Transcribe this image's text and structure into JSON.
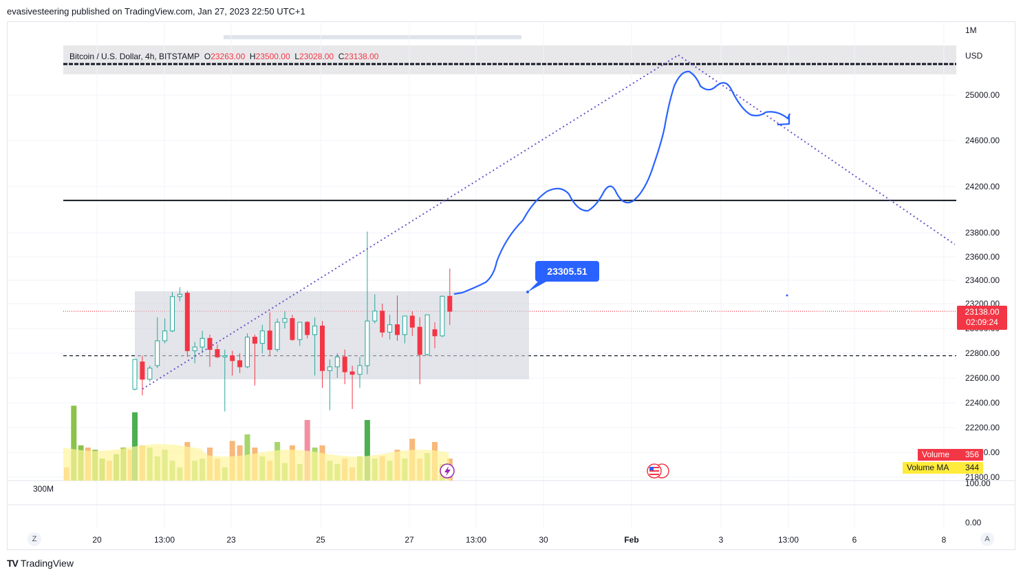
{
  "header": {
    "published": "evasivesteering published on TradingView.com, Jan 27, 2023 22:50 UTC+1"
  },
  "footer": {
    "brand": "TradingView",
    "logo_icon": "tradingview-logo-icon"
  },
  "legend": {
    "symbol": "Bitcoin / U.S. Dollar, 4h, BITSTAMP",
    "o_label": "O",
    "o_value": "23263.00",
    "h_label": "H",
    "h_value": "23500.00",
    "l_label": "L",
    "l_value": "23028.00",
    "c_label": "C",
    "c_value": "23138.00"
  },
  "price_tag": {
    "price": "23138.00",
    "countdown": "02:09:24"
  },
  "volume_tags": {
    "vol_label": "Volume",
    "vol_value": "356",
    "ma_label": "Volume MA",
    "ma_value": "344"
  },
  "callout": {
    "value": "23305.51"
  },
  "bottom_buttons": {
    "left": "Z",
    "right": "A"
  },
  "colors": {
    "up": "#26a69a",
    "down": "#f23645",
    "drawing": "#2962ff",
    "dotted": "#6a4fc9",
    "vol_up": "#4caf50",
    "vol_down": "#f7a9a9",
    "vol_ma": "#fff59d"
  },
  "chart_data": {
    "type": "candlestick",
    "currency": "USD",
    "y_ticks": [
      "25000.00",
      "24600.00",
      "24200.00",
      "23800.00",
      "23600.00",
      "23400.00",
      "23200.00",
      "23000.00",
      "22800.00",
      "22600.00",
      "22400.00",
      "22200.00",
      "22000.00",
      "21800.00"
    ],
    "ylim": [
      21750,
      25450
    ],
    "x_ticks": [
      "20",
      "13:00",
      "23",
      "25",
      "27",
      "13:00",
      "30",
      "Feb",
      "3",
      "13:00",
      "6",
      "8"
    ],
    "volume_axis": {
      "top_label": "1M",
      "mid_label": "300M",
      "scale_labels": [
        "100.00",
        "0.00"
      ]
    },
    "candles": [
      {
        "o": 22510,
        "h": 22740,
        "l": 22500,
        "c": 22750
      },
      {
        "o": 22730,
        "h": 22780,
        "l": 22460,
        "c": 22590
      },
      {
        "o": 22590,
        "h": 22700,
        "l": 22570,
        "c": 22680
      },
      {
        "o": 22700,
        "h": 23090,
        "l": 22680,
        "c": 22900
      },
      {
        "o": 22900,
        "h": 23080,
        "l": 22880,
        "c": 22980
      },
      {
        "o": 22980,
        "h": 23300,
        "l": 22970,
        "c": 23260
      },
      {
        "o": 23260,
        "h": 23340,
        "l": 23220,
        "c": 23280
      },
      {
        "o": 23290,
        "h": 23310,
        "l": 22770,
        "c": 22820
      },
      {
        "o": 22820,
        "h": 22890,
        "l": 22720,
        "c": 22850
      },
      {
        "o": 22850,
        "h": 22980,
        "l": 22800,
        "c": 22920
      },
      {
        "o": 22920,
        "h": 22950,
        "l": 22690,
        "c": 22830
      },
      {
        "o": 22830,
        "h": 22870,
        "l": 22760,
        "c": 22770
      },
      {
        "o": 22770,
        "h": 22830,
        "l": 22330,
        "c": 22780
      },
      {
        "o": 22780,
        "h": 22820,
        "l": 22620,
        "c": 22740
      },
      {
        "o": 22740,
        "h": 22800,
        "l": 22640,
        "c": 22690
      },
      {
        "o": 22690,
        "h": 22960,
        "l": 22680,
        "c": 22930
      },
      {
        "o": 22930,
        "h": 22950,
        "l": 22540,
        "c": 22880
      },
      {
        "o": 22880,
        "h": 23030,
        "l": 22800,
        "c": 22980
      },
      {
        "o": 22980,
        "h": 23130,
        "l": 22780,
        "c": 22830
      },
      {
        "o": 22830,
        "h": 23080,
        "l": 22810,
        "c": 23050
      },
      {
        "o": 23050,
        "h": 23140,
        "l": 23000,
        "c": 23080
      },
      {
        "o": 23080,
        "h": 23110,
        "l": 22900,
        "c": 22910
      },
      {
        "o": 22910,
        "h": 23040,
        "l": 22860,
        "c": 23050
      },
      {
        "o": 23050,
        "h": 23060,
        "l": 22920,
        "c": 22950
      },
      {
        "o": 22950,
        "h": 23090,
        "l": 22620,
        "c": 23020
      },
      {
        "o": 23020,
        "h": 23060,
        "l": 22520,
        "c": 22660
      },
      {
        "o": 22660,
        "h": 22750,
        "l": 22340,
        "c": 22690
      },
      {
        "o": 22690,
        "h": 22800,
        "l": 22600,
        "c": 22770
      },
      {
        "o": 22770,
        "h": 22830,
        "l": 22550,
        "c": 22650
      },
      {
        "o": 22650,
        "h": 22700,
        "l": 22350,
        "c": 22630
      },
      {
        "o": 22630,
        "h": 22770,
        "l": 22520,
        "c": 22700
      },
      {
        "o": 22700,
        "h": 23810,
        "l": 22630,
        "c": 23060
      },
      {
        "o": 23060,
        "h": 23280,
        "l": 23040,
        "c": 23140
      },
      {
        "o": 23140,
        "h": 23200,
        "l": 22930,
        "c": 22970
      },
      {
        "o": 22970,
        "h": 23110,
        "l": 22910,
        "c": 23030
      },
      {
        "o": 23030,
        "h": 23270,
        "l": 22900,
        "c": 22950
      },
      {
        "o": 22950,
        "h": 23080,
        "l": 22880,
        "c": 23100
      },
      {
        "o": 23100,
        "h": 23140,
        "l": 22940,
        "c": 23010
      },
      {
        "o": 23010,
        "h": 23090,
        "l": 22550,
        "c": 22790
      },
      {
        "o": 22790,
        "h": 23110,
        "l": 22780,
        "c": 23110
      },
      {
        "o": 22990,
        "h": 23050,
        "l": 22840,
        "c": 22940
      },
      {
        "o": 22940,
        "h": 23270,
        "l": 22930,
        "c": 23263
      },
      {
        "o": 23263,
        "h": 23500,
        "l": 23028,
        "c": 23138
      }
    ],
    "volume_bars": [
      0.62,
      0.32,
      0.3,
      0.22,
      0.28,
      0.18,
      0.12,
      0.35,
      0.18,
      0.2,
      0.3,
      0.2,
      0.12,
      0.36,
      0.32,
      0.42,
      0.3,
      0.22,
      0.18,
      0.35,
      0.16,
      0.32,
      0.15,
      0.55,
      0.3,
      0.32,
      0.18,
      0.15,
      0.2,
      0.12,
      0.22,
      0.55,
      0.2,
      0.22,
      0.18,
      0.28,
      0.2,
      0.38,
      0.2,
      0.25,
      0.35,
      0.15,
      0.2
    ],
    "levels": [
      {
        "price": 25150,
        "style": "solid",
        "color": "#131722"
      },
      {
        "price": 24080,
        "style": "solid",
        "color": "#131722"
      },
      {
        "price": 22780,
        "style": "dashed",
        "color": "#131722"
      },
      {
        "price": 23138,
        "style": "dotted",
        "color": "#f23645"
      }
    ],
    "range_box": {
      "top": 23305.51,
      "bottom": 22590
    }
  }
}
